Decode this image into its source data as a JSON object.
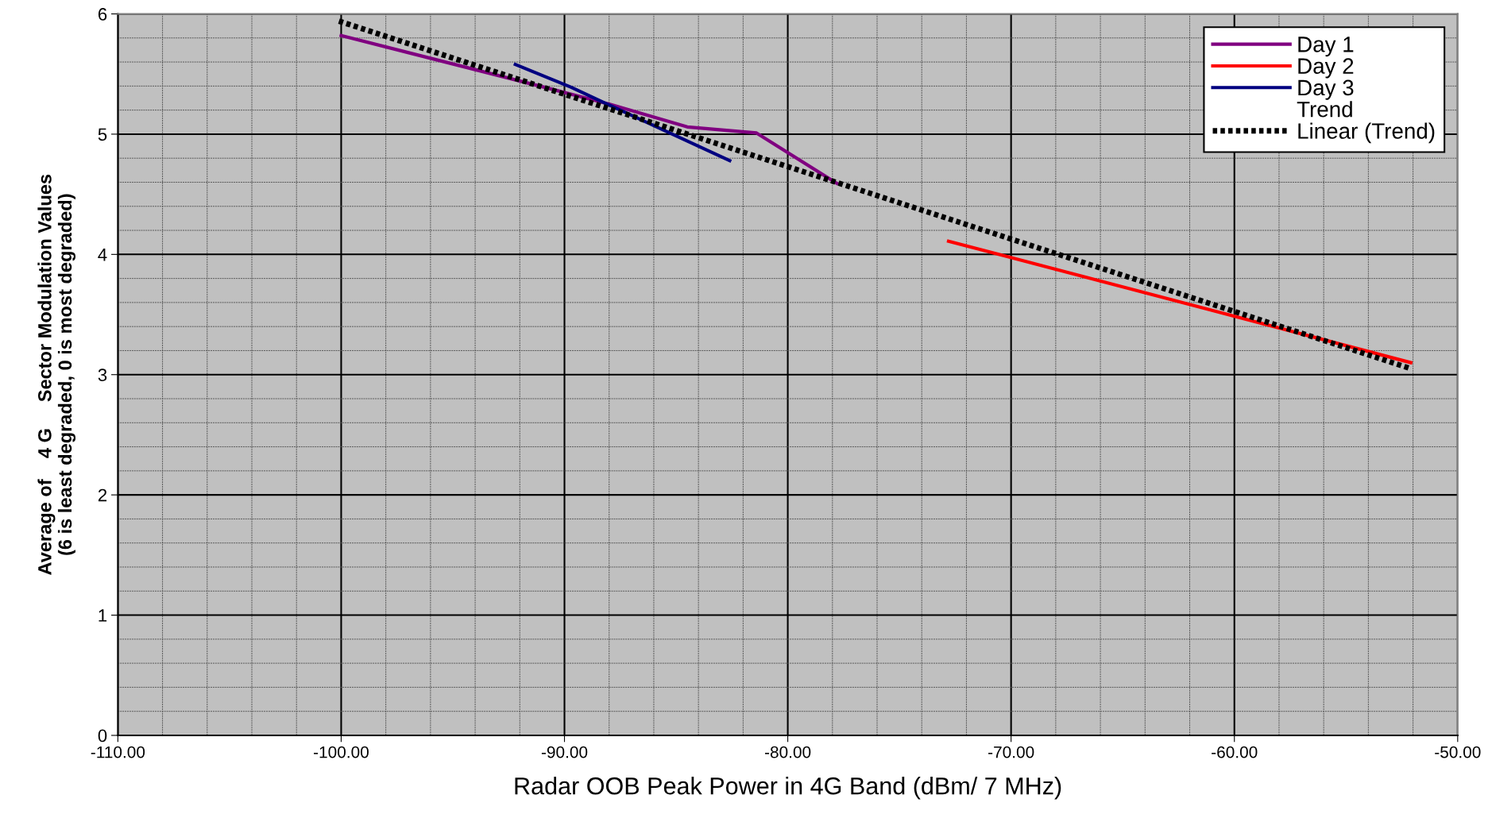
{
  "chart_data": {
    "type": "line",
    "xlabel": "Radar OOB Peak Power in 4G Band (dBm/ 7 MHz)",
    "ylabel": "Average of    4 G     Sector Modulation Values\n(6 is least degraded, 0 is most degraded)",
    "xlim": [
      -110,
      -50
    ],
    "xticks": [
      {
        "value": -110,
        "label": "-110.00"
      },
      {
        "value": -100,
        "label": "-100.00"
      },
      {
        "value": -90,
        "label": "-90.00"
      },
      {
        "value": -80,
        "label": "-80.00"
      },
      {
        "value": -70,
        "label": "-70.00"
      },
      {
        "value": -60,
        "label": "-60.00"
      },
      {
        "value": -50,
        "label": "-50.00"
      }
    ],
    "ylim": [
      0,
      6
    ],
    "yticks": [
      0,
      1,
      2,
      3,
      4,
      5,
      6
    ],
    "grid": true,
    "legend": "top right",
    "series": [
      {
        "name": "Day 1",
        "color": "#800080",
        "x": [
          -100.0,
          -90.9,
          -88.0,
          -84.5,
          -81.4,
          -77.8
        ],
        "values": [
          5.82,
          5.39,
          5.25,
          5.06,
          5.01,
          4.59
        ]
      },
      {
        "name": "Day 2",
        "color": "#ff0000",
        "x": [
          -72.8,
          -52.1
        ],
        "values": [
          4.11,
          3.1
        ]
      },
      {
        "name": "Day 3",
        "color": "#000080",
        "x": [
          -92.2,
          -89.7,
          -88.2,
          -82.6
        ],
        "values": [
          5.58,
          5.39,
          5.26,
          4.78
        ]
      },
      {
        "name": "Trend",
        "type": "scatter",
        "marker": "none"
      },
      {
        "name": "Linear (Trend)",
        "color": "#000000",
        "line_style": "dotted",
        "x": [
          -100.1,
          -52.1
        ],
        "values": [
          5.94,
          3.05
        ]
      }
    ]
  }
}
